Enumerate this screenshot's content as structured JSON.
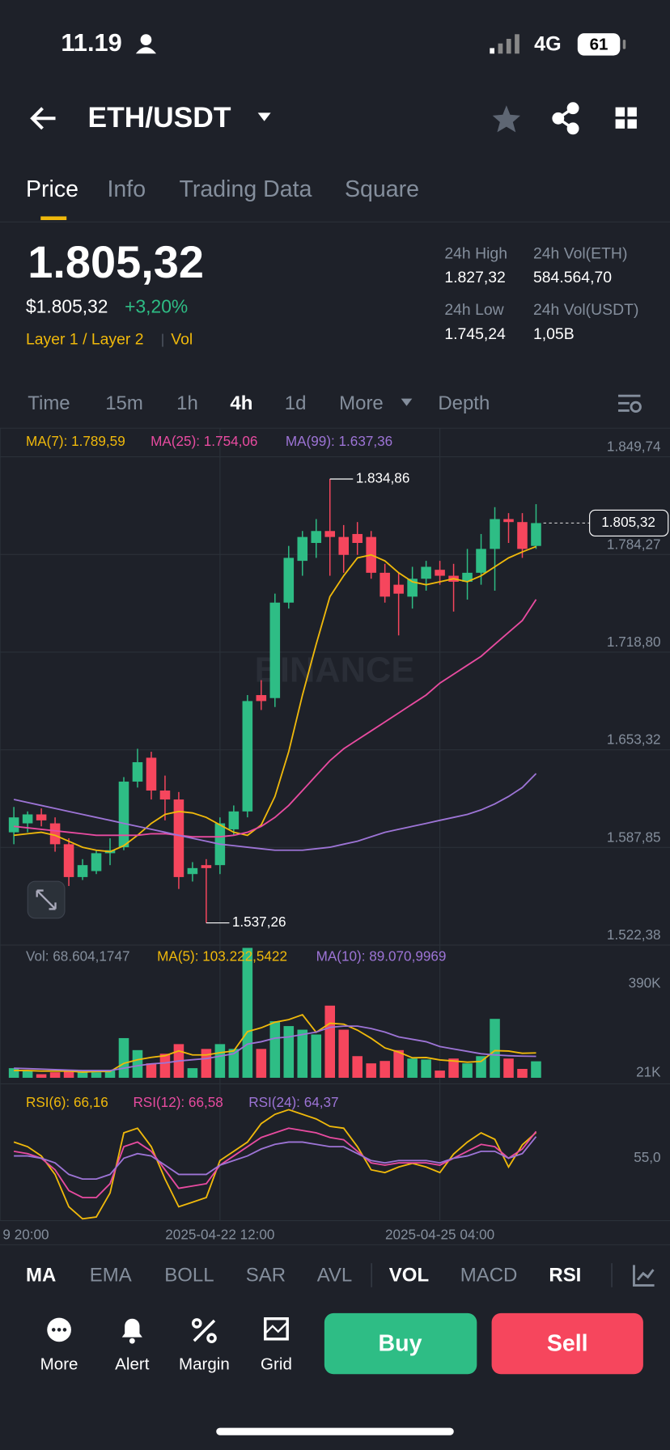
{
  "status": {
    "time": "11.19",
    "network": "4G",
    "battery": "61"
  },
  "header": {
    "pair": "ETH/USDT"
  },
  "tabs": [
    "Price",
    "Info",
    "Trading Data",
    "Square"
  ],
  "summary": {
    "price": "1.805,32",
    "usd": "$1.805,32",
    "change": "+3,20%",
    "tags": [
      "Layer 1 / Layer 2",
      "Vol"
    ],
    "stats": [
      {
        "label": "24h High",
        "value": "1.827,32"
      },
      {
        "label": "24h Vol(ETH)",
        "value": "584.564,70"
      },
      {
        "label": "24h Low",
        "value": "1.745,24"
      },
      {
        "label": "24h Vol(USDT)",
        "value": "1,05B"
      }
    ]
  },
  "intervals": [
    "Time",
    "15m",
    "1h",
    "4h",
    "1d",
    "More",
    "Depth"
  ],
  "chart_data": {
    "type": "candlestick",
    "watermark": "BINANCE",
    "ylim": [
      1522.38,
      1849.74
    ],
    "yticks": [
      {
        "value": 1849.74,
        "label": "1.849,74"
      },
      {
        "value": 1784.27,
        "label": "1.784,27"
      },
      {
        "value": 1718.8,
        "label": "1.718,80"
      },
      {
        "value": 1653.32,
        "label": "1.653,32"
      },
      {
        "value": 1587.85,
        "label": "1.587,85"
      },
      {
        "value": 1522.38,
        "label": "1.522,38"
      }
    ],
    "xticks": [
      {
        "value": -1,
        "label": "9 20:00"
      },
      {
        "value": 15,
        "label": "2025-04-22 12:00"
      },
      {
        "value": 31,
        "label": "2025-04-25 04:00"
      }
    ],
    "up_color": "#2ebd85",
    "down_color": "#f6465d",
    "open": [
      1598,
      1604,
      1610,
      1604,
      1590,
      1568,
      1572,
      1584,
      1588,
      1632,
      1648,
      1626,
      1620,
      1570,
      1576,
      1576,
      1600,
      1612,
      1690,
      1688,
      1752,
      1780,
      1792,
      1800,
      1796,
      1798,
      1796,
      1772,
      1764,
      1756,
      1768,
      1774,
      1770,
      1766,
      1772,
      1788,
      1808,
      1806,
      1790
    ],
    "high": [
      1615,
      1612,
      1614,
      1608,
      1594,
      1580,
      1586,
      1594,
      1635,
      1654,
      1652,
      1636,
      1625,
      1578,
      1580,
      1608,
      1616,
      1690,
      1700,
      1758,
      1790,
      1800,
      1808,
      1834.86,
      1804,
      1806,
      1800,
      1778,
      1772,
      1776,
      1780,
      1780,
      1778,
      1788,
      1798,
      1816,
      1812,
      1812,
      1818
    ],
    "low": [
      1590,
      1598,
      1602,
      1585,
      1562,
      1566,
      1570,
      1576,
      1586,
      1628,
      1620,
      1606,
      1560,
      1565,
      1537.26,
      1570,
      1596,
      1608,
      1680,
      1682,
      1748,
      1770,
      1782,
      1770,
      1772,
      1784,
      1768,
      1752,
      1730,
      1748,
      1760,
      1764,
      1746,
      1754,
      1764,
      1760,
      1792,
      1782,
      1788
    ],
    "close": [
      1608,
      1610,
      1606,
      1590,
      1568,
      1576,
      1584,
      1586,
      1632,
      1645,
      1626,
      1620,
      1568,
      1574,
      1574,
      1604,
      1612,
      1686,
      1686,
      1752,
      1782,
      1796,
      1800,
      1796,
      1784,
      1792,
      1772,
      1756,
      1758,
      1768,
      1776,
      1770,
      1766,
      1772,
      1788,
      1808,
      1806,
      1788,
      1805.32
    ],
    "high_label": {
      "value": 1834.86,
      "label": "1.834,86"
    },
    "low_label": {
      "value": 1537.26,
      "label": "1.537,26"
    },
    "last_price": {
      "value": 1805.32,
      "label": "1.805,32"
    },
    "series": [
      {
        "name": "MA(7): 1.789,59",
        "color": "#f0b90b",
        "values": [
          1596,
          1597,
          1598,
          1596,
          1592,
          1588,
          1586,
          1585,
          1589,
          1596,
          1604,
          1610,
          1612,
          1611,
          1608,
          1603,
          1598,
          1596,
          1603,
          1622,
          1652,
          1690,
          1724,
          1756,
          1770,
          1782,
          1784,
          1780,
          1772,
          1766,
          1764,
          1766,
          1768,
          1766,
          1770,
          1776,
          1782,
          1786,
          1789.59
        ]
      },
      {
        "name": "MA(25): 1.754,06",
        "color": "#e84ba0",
        "values": [
          1602,
          1601,
          1600,
          1599,
          1598,
          1597,
          1596,
          1596,
          1596,
          1596,
          1597,
          1597,
          1596,
          1595,
          1595,
          1595,
          1596,
          1598,
          1602,
          1608,
          1616,
          1626,
          1636,
          1646,
          1654,
          1660,
          1666,
          1672,
          1678,
          1684,
          1690,
          1698,
          1704,
          1710,
          1716,
          1724,
          1732,
          1740,
          1754.06
        ]
      },
      {
        "name": "MA(99): 1.637,36",
        "color": "#9d74d6",
        "values": [
          1620,
          1618,
          1616,
          1614,
          1612,
          1610,
          1608,
          1606,
          1604,
          1602,
          1600,
          1598,
          1596,
          1594,
          1592,
          1590,
          1589,
          1588,
          1587,
          1586,
          1586,
          1586,
          1587,
          1588,
          1590,
          1592,
          1595,
          1598,
          1600,
          1602,
          1604,
          1606,
          1608,
          1610,
          1613,
          1617,
          1622,
          1628,
          1637.36
        ]
      }
    ],
    "volume": {
      "name": "Vol: 68.604,1747",
      "ylim": [
        -25000,
        544000
      ],
      "yticks": [
        {
          "value": 390000,
          "label": "390K"
        },
        {
          "value": 21000,
          "label": "21K"
        }
      ],
      "values": [
        40000,
        30000,
        15000,
        23000,
        30000,
        23000,
        23000,
        30000,
        165000,
        115000,
        60000,
        100000,
        140000,
        40000,
        120000,
        140000,
        120000,
        540000,
        120000,
        235000,
        215000,
        200000,
        180000,
        300000,
        200000,
        90000,
        60000,
        70000,
        115000,
        80000,
        76000,
        30000,
        80000,
        60000,
        90000,
        245000,
        80000,
        37000,
        68604.1747
      ],
      "series": [
        {
          "name": "MA(5): 103.222,5422",
          "color": "#f0b90b",
          "values": [
            30000,
            30000,
            28000,
            28000,
            28000,
            24000,
            26000,
            26000,
            60000,
            75000,
            85000,
            92000,
            112000,
            95000,
            95000,
            104000,
            112000,
            192000,
            208000,
            231000,
            242000,
            262000,
            189000,
            227000,
            223000,
            198000,
            164000,
            124000,
            107000,
            83000,
            84000,
            74000,
            70000,
            65000,
            68000,
            113000,
            111000,
            102000,
            103222.5422
          ]
        },
        {
          "name": "MA(10): 89.070,9969",
          "color": "#9d74d6",
          "values": [
            40000,
            38000,
            36000,
            34000,
            32000,
            30000,
            30000,
            30000,
            40000,
            50000,
            58000,
            62000,
            70000,
            75000,
            80000,
            90000,
            100000,
            140000,
            150000,
            165000,
            170000,
            180000,
            190000,
            210000,
            215000,
            215000,
            205000,
            190000,
            170000,
            160000,
            150000,
            130000,
            120000,
            110000,
            100000,
            95000,
            92000,
            90000,
            89070.9969
          ]
        }
      ]
    },
    "rsi": {
      "ylim": [
        28,
        84
      ],
      "yticks": [
        {
          "value": 55,
          "label": "55,0"
        }
      ],
      "series": [
        {
          "name": "RSI(6): 66,16",
          "color": "#f0b90b",
          "values": [
            62,
            60,
            56,
            48,
            34,
            28.8,
            29.6,
            40,
            66,
            68,
            60,
            46,
            34,
            36,
            38,
            54,
            58,
            62,
            70,
            74,
            76,
            74,
            72,
            68.8,
            68,
            60,
            50,
            48.8,
            51.2,
            52.8,
            51.2,
            48.8,
            56.8,
            62,
            66,
            63.2,
            51.2,
            60.8,
            66.16
          ]
        },
        {
          "name": "RSI(12): 66,58",
          "color": "#e84ba0",
          "values": [
            58,
            57,
            55,
            50,
            41,
            38,
            38,
            44,
            60,
            62,
            58,
            50,
            42,
            43,
            44,
            52,
            56,
            60,
            64,
            66,
            68,
            67,
            66,
            64,
            63,
            58,
            53,
            52,
            53,
            53,
            53,
            52,
            55,
            58,
            61,
            60,
            55,
            59,
            66.58
          ]
        },
        {
          "name": "RSI(24): 64,37",
          "color": "#9d74d6",
          "values": [
            56,
            56,
            55,
            53,
            48,
            46,
            46,
            48,
            55,
            57,
            56,
            52,
            48,
            48,
            48,
            52,
            54,
            56,
            59,
            61,
            62,
            62,
            61,
            60,
            60,
            57,
            54,
            53,
            54,
            54,
            54,
            53,
            55,
            56,
            58,
            58,
            55,
            57,
            64.37
          ]
        }
      ]
    }
  },
  "indicators": [
    "MA",
    "EMA",
    "BOLL",
    "SAR",
    "AVL",
    "VOL",
    "MACD",
    "RSI"
  ],
  "actions": [
    "More",
    "Alert",
    "Margin",
    "Grid"
  ],
  "buy": "Buy",
  "sell": "Sell"
}
